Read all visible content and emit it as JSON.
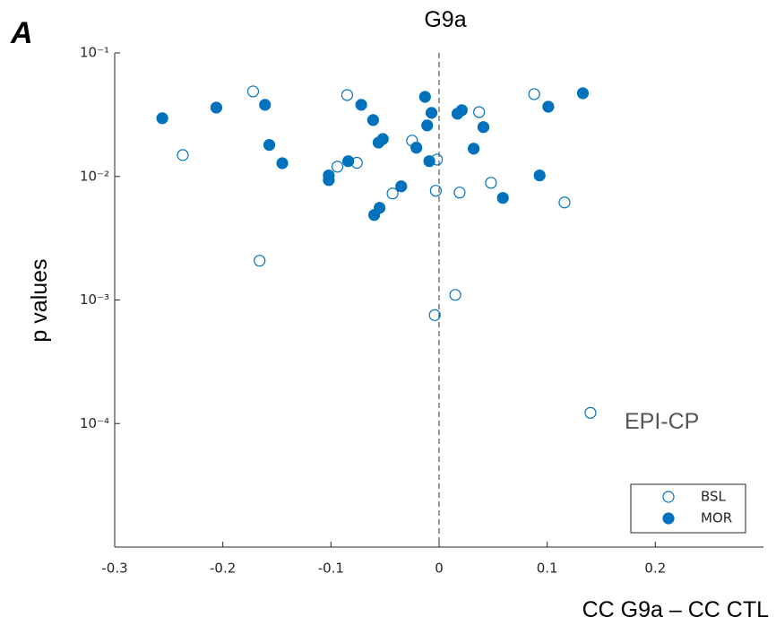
{
  "panel_label": "A",
  "chart_data": {
    "type": "scatter",
    "title": "G9a",
    "x_label": "CC G9a – CC CTL",
    "y_label": "p values",
    "xlim": [
      -0.3,
      0.3
    ],
    "ylim": [
      1e-05,
      0.1
    ],
    "log_y": true,
    "xticks": [
      -0.3,
      -0.2,
      -0.1,
      0,
      0.1,
      0.2
    ],
    "yticks": [
      {
        "value": 0.0001,
        "label": "10⁻⁴"
      },
      {
        "value": 0.001,
        "label": "10⁻³"
      },
      {
        "value": 0.01,
        "label": "10⁻²"
      },
      {
        "value": 0.1,
        "label": "10⁻¹"
      }
    ],
    "vline": 0,
    "legend": "lower right",
    "annotations": [
      "EPI-CP"
    ],
    "series": [
      {
        "name": "BSL",
        "color": "#0072bd",
        "filled": false,
        "x": [
          -0.172,
          -0.237,
          -0.166,
          -0.085,
          -0.094,
          -0.076,
          -0.043,
          -0.025,
          -0.002,
          -0.003,
          -0.004,
          0.019,
          0.015,
          0.037,
          0.048,
          0.088,
          0.116,
          0.14
        ],
        "values": [
          0.0488,
          0.0149,
          0.00208,
          0.0456,
          0.012,
          0.0129,
          0.00728,
          0.0195,
          0.0137,
          0.00766,
          0.000754,
          0.00741,
          0.0011,
          0.0332,
          0.00889,
          0.0464,
          0.00616,
          0.000122
        ]
      },
      {
        "name": "MOR",
        "color": "#0072bd",
        "filled": true,
        "x": [
          -0.256,
          -0.206,
          -0.157,
          -0.161,
          -0.145,
          -0.102,
          -0.102,
          -0.084,
          -0.072,
          -0.061,
          -0.056,
          -0.052,
          -0.06,
          -0.055,
          -0.035,
          -0.021,
          -0.013,
          -0.011,
          -0.009,
          -0.007,
          0.017,
          0.021,
          0.032,
          0.041,
          0.059,
          0.093,
          0.101,
          0.133
        ],
        "values": [
          0.0296,
          0.0361,
          0.018,
          0.038,
          0.0128,
          0.0102,
          0.00935,
          0.0133,
          0.038,
          0.0286,
          0.0188,
          0.0201,
          0.00488,
          0.00557,
          0.00832,
          0.0171,
          0.0441,
          0.0259,
          0.0133,
          0.0327,
          0.0322,
          0.0344,
          0.0168,
          0.0251,
          0.0067,
          0.0102,
          0.0367,
          0.0472
        ]
      }
    ]
  }
}
